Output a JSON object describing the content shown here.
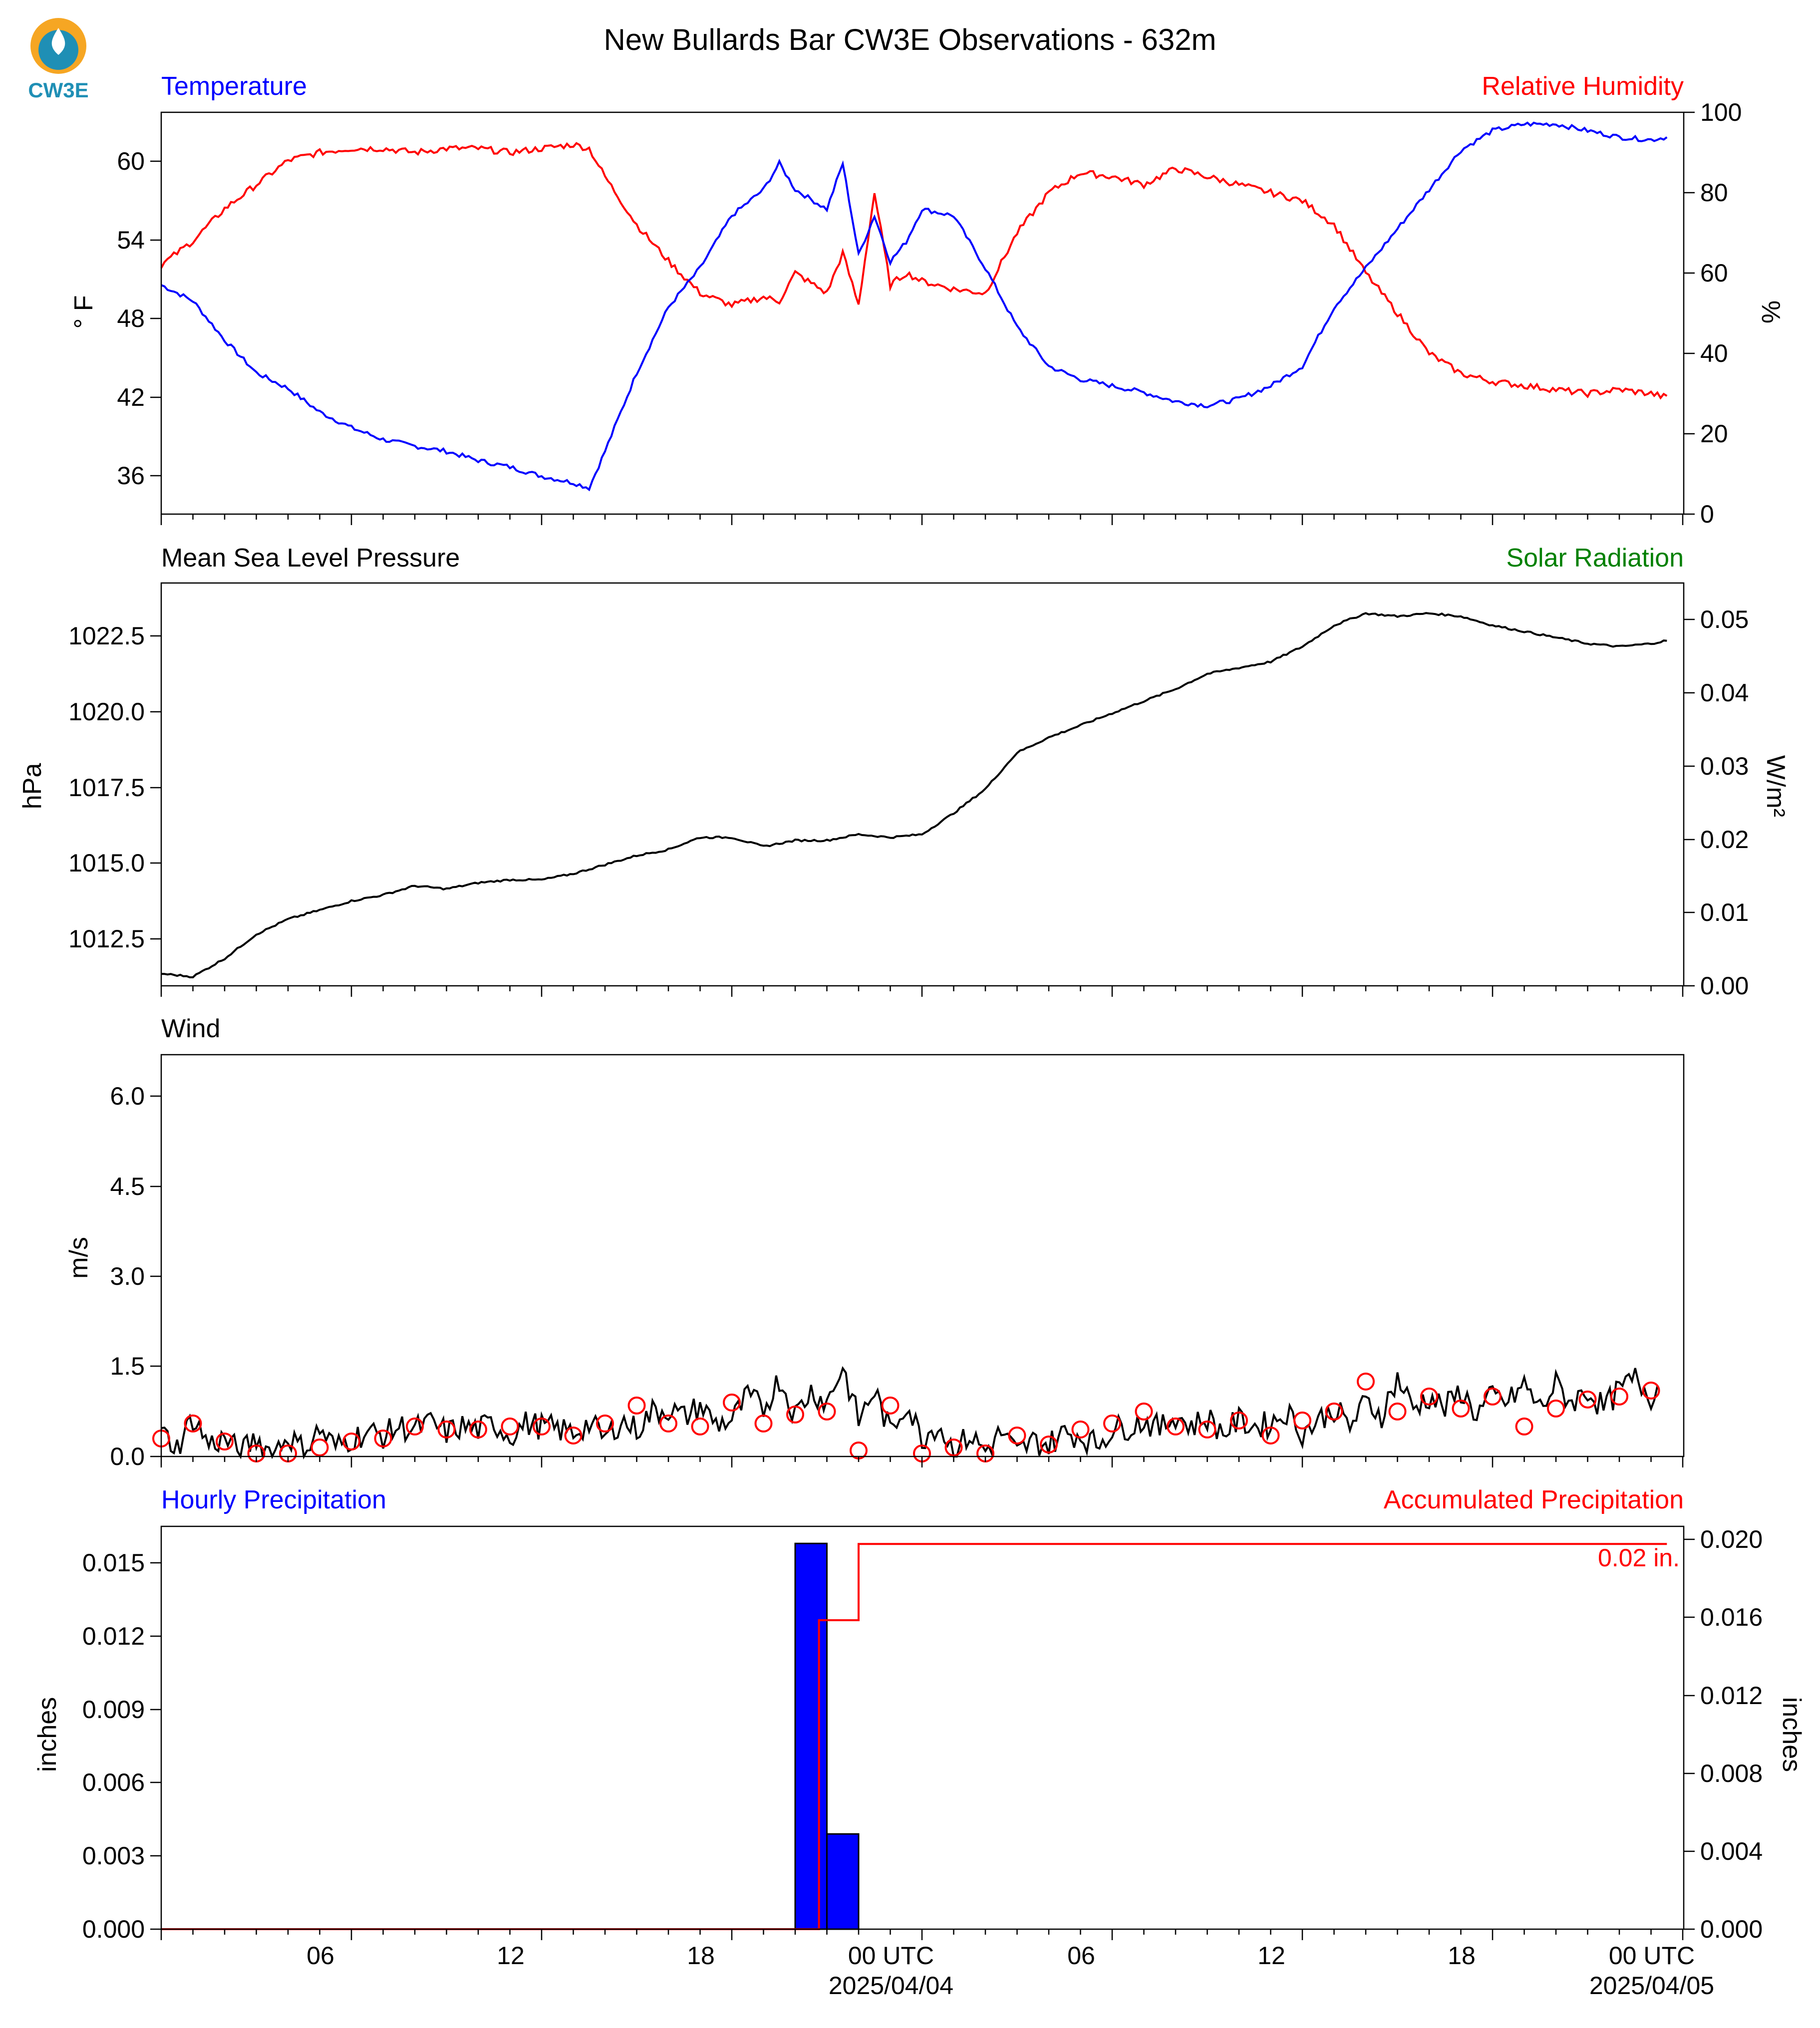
{
  "title": "New Bullards Bar CW3E Observations - 632m",
  "logo": {
    "text": "CW3E",
    "icon": "cw3e-drop-logo",
    "colors": {
      "ring": "#f6a623",
      "drop": "#1f8fb5",
      "text": "#1f8fb5"
    }
  },
  "colors": {
    "blue": "#0000ff",
    "red": "#ff0000",
    "green": "#008000",
    "black": "#000000"
  },
  "time_axis": {
    "start": "2025-04-03 00:00 UTC",
    "end": "2025-04-05 00:30 UTC",
    "major_tick_labels": [
      "06",
      "12",
      "18",
      "00 UTC",
      "06",
      "12",
      "18",
      "00 UTC"
    ],
    "date_labels": [
      "2025/04/04",
      "2025/04/05"
    ]
  },
  "chart_data": [
    {
      "type": "line",
      "panel": "temperature-humidity",
      "left_title": "Temperature",
      "right_title": "Relative Humidity",
      "ylabel": "° F",
      "ylabel_right": "%",
      "ylim": [
        32.2,
        62.9
      ],
      "ylim_right": [
        0,
        100
      ],
      "yticks": [
        "36",
        "42",
        "48",
        "54",
        "60"
      ],
      "yticks_right": [
        "0",
        "20",
        "40",
        "60",
        "80",
        "100"
      ],
      "series": [
        {
          "name": "Temperature",
          "axis": "left",
          "color": "#0000ff",
          "x_hours": [
            0,
            1,
            2,
            3,
            4,
            5,
            6,
            7,
            8,
            9,
            10,
            11,
            12,
            13,
            13.5,
            14,
            15,
            16,
            17,
            18,
            19,
            19.5,
            20,
            21,
            21.5,
            22,
            22.5,
            23,
            23.5,
            24,
            25,
            26,
            27,
            28,
            29,
            30,
            31,
            32,
            33,
            34,
            35,
            36,
            37,
            38,
            39,
            40,
            41,
            42,
            43,
            44,
            45,
            46,
            47,
            47.5
          ],
          "values": [
            49.7,
            48.5,
            45.5,
            43.0,
            41.8,
            40.0,
            38.8,
            37.9,
            37.4,
            37.0,
            36.3,
            35.8,
            35.1,
            34.6,
            34.2,
            37.0,
            43.0,
            48.0,
            51.0,
            55.0,
            57.0,
            59.0,
            57.0,
            55.5,
            59.0,
            52.0,
            55.0,
            51.5,
            53.0,
            55.5,
            55.0,
            51.0,
            46.5,
            43.5,
            42.5,
            42.0,
            41.5,
            40.8,
            40.5,
            41.0,
            42.0,
            43.5,
            48.0,
            51.0,
            54.0,
            57.0,
            60.0,
            61.5,
            62.0,
            62.0,
            61.5,
            61.0,
            60.8,
            61.0
          ]
        },
        {
          "name": "Relative Humidity",
          "axis": "right",
          "color": "#ff0000",
          "x_hours": [
            0,
            1,
            2,
            3,
            4,
            5,
            6,
            7,
            8,
            9,
            10,
            11,
            12,
            13,
            13.5,
            14,
            15,
            16,
            17,
            18,
            19,
            19.5,
            20,
            21,
            21.5,
            22,
            22.5,
            23,
            23.5,
            24,
            25,
            26,
            27,
            28,
            29,
            30,
            31,
            32,
            33,
            34,
            35,
            36,
            37,
            38,
            39,
            40,
            41,
            42,
            43,
            44,
            45,
            46,
            47,
            47.5
          ],
          "values": [
            62,
            68,
            76,
            82,
            88,
            90,
            91,
            91,
            90,
            91,
            91,
            90,
            91,
            92,
            91,
            84,
            72,
            63,
            55,
            52,
            54,
            53,
            60,
            55,
            65,
            52,
            80,
            57,
            60,
            58,
            56,
            55,
            70,
            80,
            85,
            84,
            82,
            86,
            84,
            82,
            80,
            78,
            72,
            60,
            50,
            40,
            35,
            33,
            32,
            31,
            30,
            31,
            30,
            29
          ]
        }
      ]
    },
    {
      "type": "line",
      "panel": "pressure-solar",
      "left_title": "Mean Sea Level Pressure",
      "right_title": "Solar Radiation",
      "ylabel": "hPa",
      "ylabel_right": "W/m²",
      "ylim": [
        1011.3,
        1024.6
      ],
      "ylim_right": [
        0,
        0.055
      ],
      "yticks": [
        "1012.5",
        "1015.0",
        "1017.5",
        "1020.0",
        "1022.5"
      ],
      "yticks_right": [
        "0.00",
        "0.01",
        "0.02",
        "0.03",
        "0.04",
        "0.05"
      ],
      "series": [
        {
          "name": "Mean Sea Level Pressure",
          "axis": "left",
          "color": "#000000",
          "x_hours": [
            0,
            1,
            2,
            3,
            4,
            5,
            6,
            7,
            8,
            9,
            10,
            11,
            12,
            13,
            14,
            15,
            16,
            17,
            18,
            19,
            20,
            21,
            22,
            23,
            24,
            25,
            26,
            27,
            28,
            29,
            30,
            31,
            32,
            33,
            34,
            35,
            36,
            37,
            38,
            39,
            40,
            41,
            42,
            43,
            44,
            45,
            46,
            47,
            47.5
          ],
          "values": [
            1011.7,
            1011.6,
            1012.2,
            1013.0,
            1013.5,
            1013.8,
            1014.1,
            1014.3,
            1014.6,
            1014.5,
            1014.7,
            1014.8,
            1014.8,
            1015.0,
            1015.3,
            1015.6,
            1015.8,
            1016.2,
            1016.2,
            1015.9,
            1016.1,
            1016.1,
            1016.3,
            1016.2,
            1016.3,
            1017.0,
            1017.8,
            1019.0,
            1019.5,
            1019.9,
            1020.3,
            1020.7,
            1021.1,
            1021.6,
            1021.8,
            1022.0,
            1022.5,
            1023.2,
            1023.6,
            1023.5,
            1023.6,
            1023.5,
            1023.2,
            1023.0,
            1022.8,
            1022.6,
            1022.5,
            1022.6,
            1022.7
          ]
        }
      ]
    },
    {
      "type": "line",
      "panel": "wind",
      "left_title": "Wind",
      "ylabel": "m/s",
      "ylim": [
        0,
        6.7
      ],
      "yticks": [
        "0.0",
        "1.5",
        "3.0",
        "4.5",
        "6.0"
      ],
      "series": [
        {
          "name": "Wind",
          "color": "#000000",
          "x_hours": [
            0,
            0.5,
            1,
            1.5,
            2,
            2.5,
            3,
            3.5,
            4,
            4.5,
            5,
            5.5,
            6,
            6.5,
            7,
            7.5,
            8,
            8.5,
            9,
            9.5,
            10,
            10.5,
            11,
            11.5,
            12,
            12.5,
            13,
            13.5,
            14,
            14.5,
            15,
            15.5,
            16,
            16.5,
            17,
            17.5,
            18,
            18.5,
            19,
            19.5,
            20,
            20.5,
            21,
            21.5,
            22,
            22.5,
            23,
            23.5,
            24,
            24.5,
            25,
            25.5,
            26,
            26.5,
            27,
            27.5,
            28,
            28.5,
            29,
            29.5,
            30,
            30.5,
            31,
            31.5,
            32,
            32.5,
            33,
            33.5,
            34,
            34.5,
            35,
            35.5,
            36,
            36.5,
            37,
            37.5,
            38,
            38.5,
            39,
            39.5,
            40,
            40.5,
            41,
            41.5,
            42,
            42.5,
            43,
            43.5,
            44,
            44.5,
            45,
            45.5,
            46,
            46.5,
            47,
            47.2
          ],
          "values": [
            0.4,
            0.15,
            0.65,
            0.2,
            0.3,
            0.05,
            0.3,
            0.05,
            0.35,
            0.1,
            0.45,
            0.15,
            0.3,
            0.4,
            0.35,
            0.5,
            0.45,
            0.55,
            0.4,
            0.5,
            0.45,
            0.55,
            0.35,
            0.55,
            0.5,
            0.45,
            0.4,
            0.55,
            0.3,
            0.6,
            0.45,
            0.75,
            0.8,
            0.65,
            0.85,
            0.55,
            0.6,
            1.0,
            0.8,
            1.3,
            0.7,
            1.1,
            0.9,
            1.5,
            0.6,
            1.1,
            0.4,
            0.9,
            0.3,
            0.55,
            0.1,
            0.35,
            0.1,
            0.4,
            0.05,
            0.25,
            0.2,
            0.4,
            0.35,
            0.2,
            0.45,
            0.5,
            0.6,
            0.45,
            0.7,
            0.5,
            0.65,
            0.4,
            0.6,
            0.5,
            0.55,
            0.75,
            0.4,
            0.6,
            0.8,
            0.5,
            0.9,
            0.7,
            1.3,
            0.8,
            1.0,
            0.8,
            1.1,
            0.7,
            1.0,
            0.9,
            1.2,
            0.8,
            1.2,
            0.9,
            1.1,
            0.8,
            1.1,
            1.3,
            1.0,
            1.2
          ]
        },
        {
          "name": "Wind gust",
          "type": "scatter",
          "marker": "open-circle",
          "color": "#ff0000",
          "x_hours": [
            0,
            1,
            2,
            3,
            4,
            5,
            6,
            7,
            8,
            9,
            10,
            11,
            12,
            13,
            14,
            15,
            16,
            17,
            18,
            19,
            20,
            21,
            22,
            23,
            24,
            25,
            26,
            27,
            28,
            29,
            30,
            31,
            32,
            33,
            34,
            35,
            36,
            37,
            38,
            39,
            40,
            41,
            42,
            43,
            44,
            45,
            46,
            47
          ],
          "values": [
            0.3,
            0.55,
            0.25,
            0.05,
            0.05,
            0.15,
            0.25,
            0.3,
            0.5,
            0.45,
            0.45,
            0.5,
            0.5,
            0.35,
            0.55,
            0.85,
            0.55,
            0.5,
            0.9,
            0.55,
            0.7,
            0.75,
            0.1,
            0.85,
            0.05,
            0.15,
            0.05,
            0.35,
            0.2,
            0.45,
            0.55,
            0.75,
            0.5,
            0.45,
            0.6,
            0.35,
            0.6,
            0.75,
            1.25,
            0.75,
            1.0,
            0.8,
            1.0,
            0.5,
            0.8,
            0.95,
            1.0,
            1.1
          ]
        }
      ]
    },
    {
      "type": "bar",
      "panel": "precipitation",
      "left_title": "Hourly Precipitation",
      "right_title": "Accumulated Precipitation",
      "ylabel": "inches",
      "ylabel_right": "inches",
      "ylim": [
        0,
        0.0165
      ],
      "ylim_right": [
        0,
        0.0206
      ],
      "yticks": [
        "0.000",
        "0.003",
        "0.006",
        "0.009",
        "0.012",
        "0.015"
      ],
      "yticks_right": [
        "0.000",
        "0.004",
        "0.008",
        "0.012",
        "0.016",
        "0.020"
      ],
      "annotation": "0.02 in.",
      "series": [
        {
          "name": "Hourly Precipitation",
          "color": "#0000ff",
          "bars": [
            {
              "x_start_hours": 20,
              "x_end_hours": 21,
              "value": 0.0158
            },
            {
              "x_start_hours": 21,
              "x_end_hours": 22,
              "value": 0.0039
            }
          ]
        },
        {
          "name": "Accumulated Precipitation",
          "type": "step-line",
          "axis": "right",
          "color": "#ff0000",
          "x_hours": [
            0,
            20.75,
            20.75,
            22.0,
            22.0,
            47.5
          ],
          "values": [
            0,
            0,
            0.0158,
            0.0158,
            0.0197,
            0.0197
          ]
        }
      ]
    }
  ]
}
